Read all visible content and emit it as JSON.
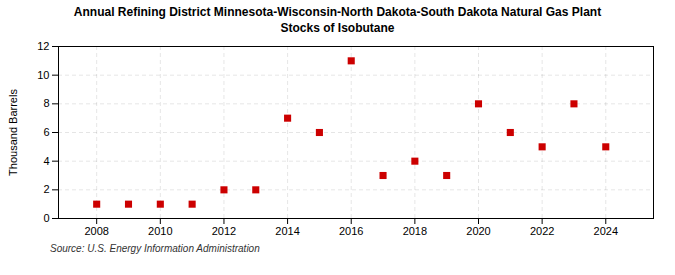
{
  "chart_data": {
    "type": "scatter",
    "title": "Annual Refining District Minnesota-Wisconsin-North Dakota-South Dakota Natural Gas Plant",
    "subtitle": "Stocks of Isobutane",
    "ylabel": "Thousand Barrels",
    "source": "Source: U.S. Energy Information Administration",
    "x": [
      2008,
      2009,
      2010,
      2011,
      2012,
      2013,
      2014,
      2015,
      2016,
      2017,
      2018,
      2019,
      2020,
      2021,
      2022,
      2023,
      2024
    ],
    "values": [
      1,
      1,
      1,
      1,
      2,
      2,
      7,
      6,
      11,
      3,
      4,
      3,
      8,
      6,
      5,
      8,
      5
    ],
    "color": "#CC0000",
    "marker": "square",
    "xlim": [
      2006.8,
      2025.5
    ],
    "ylim": [
      0,
      12
    ],
    "xticks": [
      2008,
      2010,
      2012,
      2014,
      2016,
      2018,
      2020,
      2022,
      2024
    ],
    "yticks": [
      0,
      2,
      4,
      6,
      8,
      10,
      12
    ],
    "grid": true
  }
}
